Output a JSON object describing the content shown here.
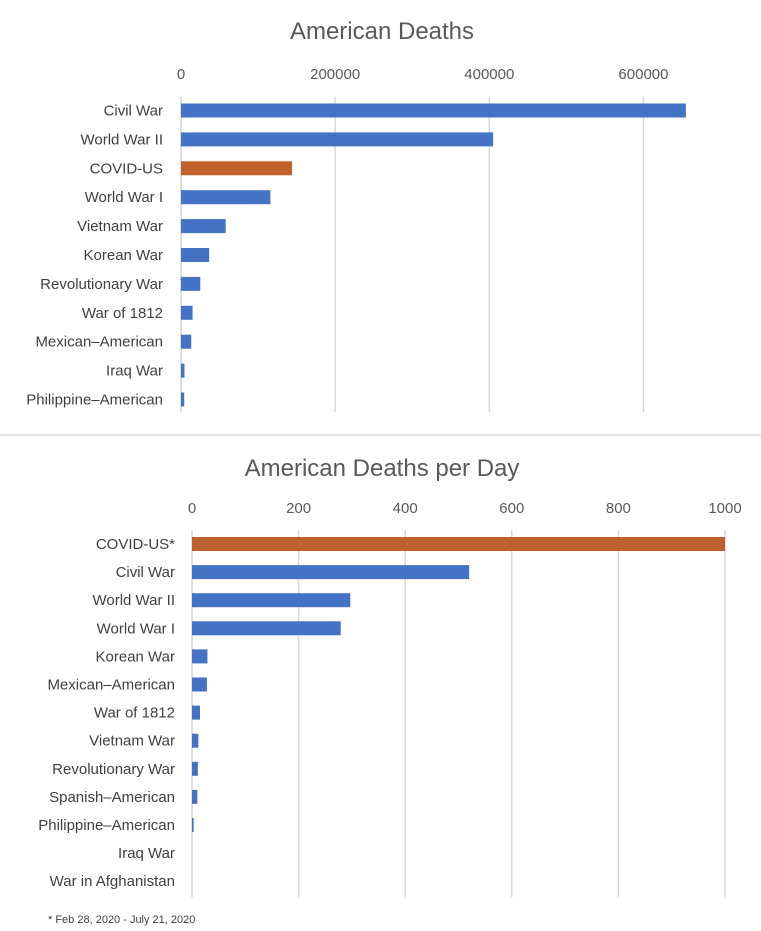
{
  "chart_data": [
    {
      "type": "bar",
      "orientation": "horizontal",
      "title": "American Deaths",
      "xlabel": "",
      "ylabel": "",
      "xlim": [
        0,
        650000
      ],
      "ticks": [
        0,
        200000,
        400000,
        600000
      ],
      "tick_labels": [
        "0",
        "200000",
        "400000",
        "600000"
      ],
      "grid": true,
      "axis_position": "top",
      "categories": [
        "Civil War",
        "World War II",
        "COVID-US",
        "World War I",
        "Vietnam War",
        "Korean War",
        "Revolutionary War",
        "War of 1812",
        "Mexican–American",
        "Iraq War",
        "Philippine–American"
      ],
      "values": [
        655000,
        405000,
        144000,
        116000,
        58000,
        36500,
        25000,
        15000,
        13300,
        4500,
        4200
      ],
      "highlight_category": "COVID-US",
      "colors": {
        "default": "#4472c4",
        "highlight": "#c0612b"
      }
    },
    {
      "type": "bar",
      "orientation": "horizontal",
      "title": "American Deaths per Day",
      "xlabel": "",
      "ylabel": "",
      "xlim": [
        0,
        1000
      ],
      "ticks": [
        0,
        200,
        400,
        600,
        800,
        1000
      ],
      "tick_labels": [
        "0",
        "200",
        "400",
        "600",
        "800",
        "1000"
      ],
      "grid": true,
      "axis_position": "top",
      "categories": [
        "COVID-US*",
        "Civil War",
        "World War II",
        "World War I",
        "Korean War",
        "Mexican–American",
        "War of 1812",
        "Vietnam War",
        "Revolutionary War",
        "Spanish–American",
        "Philippine–American",
        "Iraq War",
        "War in Afghanistan"
      ],
      "values": [
        1000,
        520,
        297,
        279,
        29,
        28,
        15,
        12,
        11,
        10,
        3,
        1,
        0.5
      ],
      "highlight_category": "COVID-US*",
      "colors": {
        "default": "#4472c4",
        "highlight": "#c0612b"
      }
    }
  ],
  "footnote": "* Feb 28, 2020 - July 21, 2020"
}
